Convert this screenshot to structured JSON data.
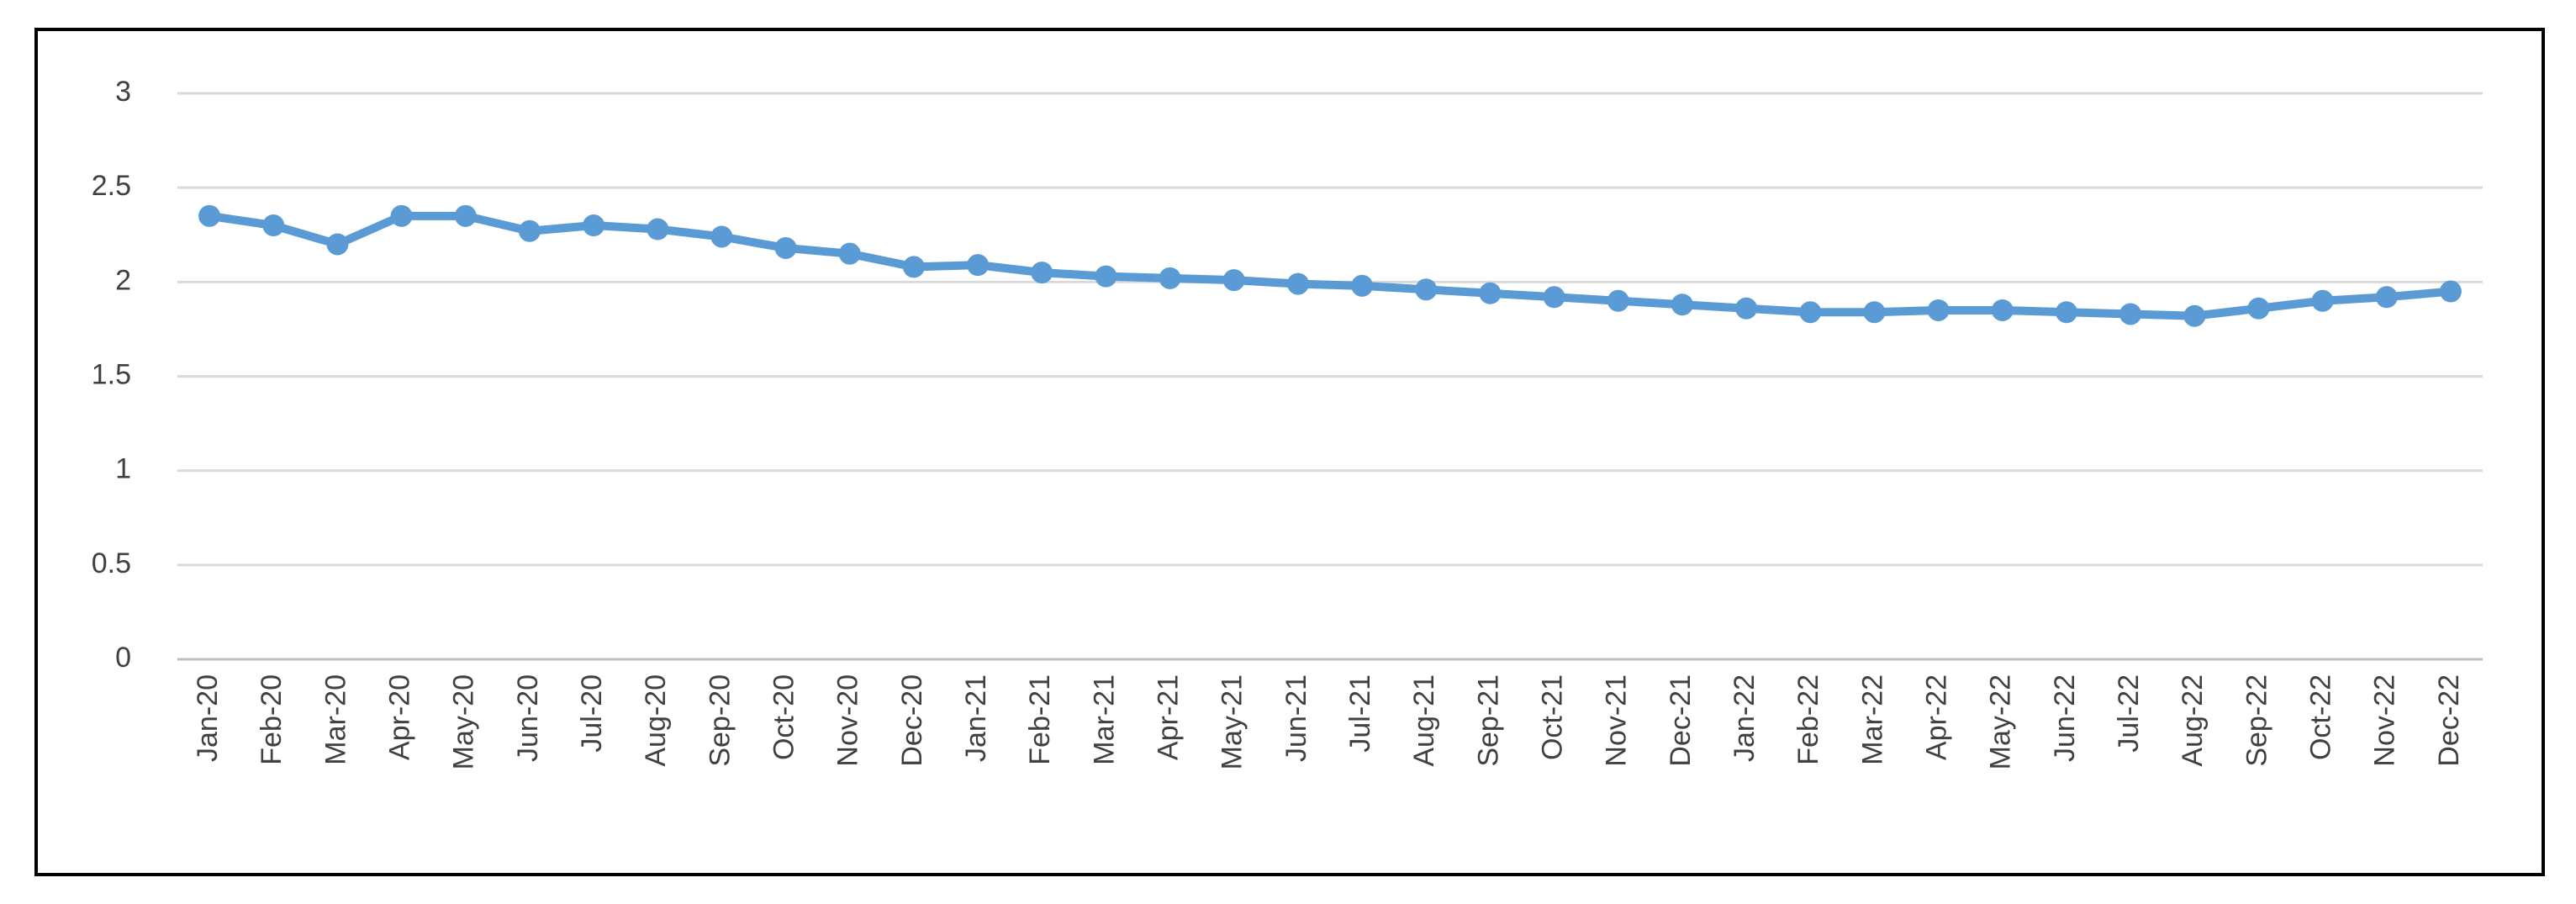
{
  "chart_data": {
    "type": "line",
    "categories": [
      "Jan-20",
      "Feb-20",
      "Mar-20",
      "Apr-20",
      "May-20",
      "Jun-20",
      "Jul-20",
      "Aug-20",
      "Sep-20",
      "Oct-20",
      "Nov-20",
      "Dec-20",
      "Jan-21",
      "Feb-21",
      "Mar-21",
      "Apr-21",
      "May-21",
      "Jun-21",
      "Jul-21",
      "Aug-21",
      "Sep-21",
      "Oct-21",
      "Nov-21",
      "Dec-21",
      "Jan-22",
      "Feb-22",
      "Mar-22",
      "Apr-22",
      "May-22",
      "Jun-22",
      "Jul-22",
      "Aug-22",
      "Sep-22",
      "Oct-22",
      "Nov-22",
      "Dec-22"
    ],
    "values": [
      2.35,
      2.3,
      2.2,
      2.35,
      2.35,
      2.27,
      2.3,
      2.28,
      2.24,
      2.18,
      2.15,
      2.08,
      2.09,
      2.05,
      2.03,
      2.02,
      2.01,
      1.99,
      1.98,
      1.96,
      1.94,
      1.92,
      1.9,
      1.88,
      1.86,
      1.84,
      1.84,
      1.85,
      1.85,
      1.84,
      1.83,
      1.82,
      1.86,
      1.9,
      1.92,
      1.95
    ],
    "color": "#5b9bd5",
    "ylim": [
      0,
      3
    ],
    "yticks": [
      0,
      0.5,
      1,
      1.5,
      2,
      2.5,
      3
    ],
    "grid": true
  }
}
